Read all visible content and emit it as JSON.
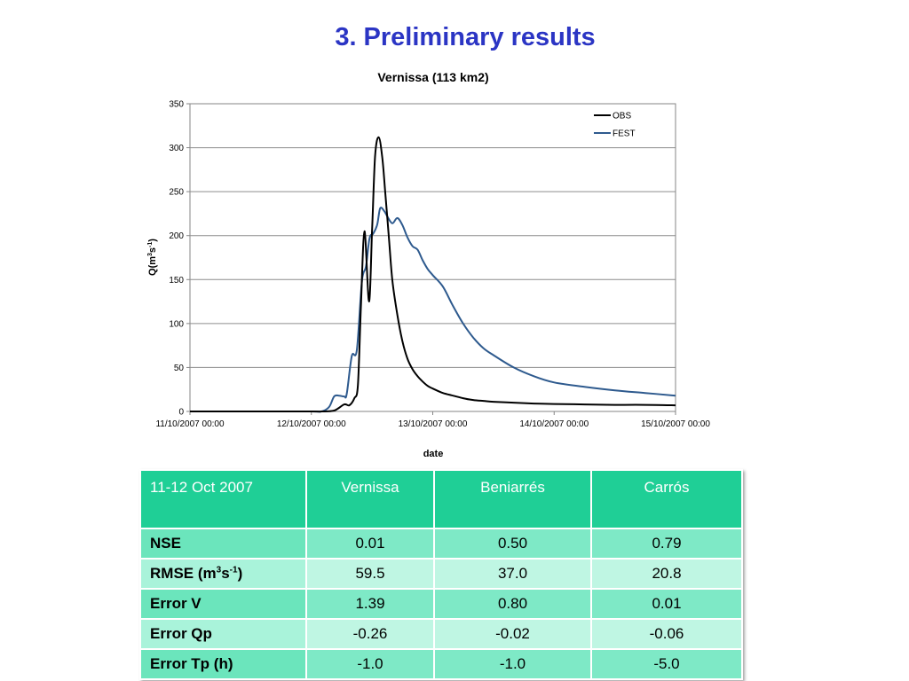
{
  "slide": {
    "title": "3. Preliminary results"
  },
  "chart_data": {
    "type": "line",
    "title": "Vernissa (113 km2)",
    "xlabel": "date",
    "ylabel": {
      "base": "Q(m",
      "sup1": "3",
      "mid": "s",
      "sup2": "-1",
      "end": ")"
    },
    "ylim": [
      0,
      350
    ],
    "xlim": [
      "11/10/2007 00:00",
      "15/10/2007 00:00"
    ],
    "x_unit": "hours since 11/10/2007 00:00",
    "yticks": [
      "0",
      "50",
      "100",
      "150",
      "200",
      "250",
      "300",
      "350"
    ],
    "xticks": [
      "11/10/2007 00:00",
      "12/10/2007 00:00",
      "13/10/2007 00:00",
      "14/10/2007 00:00",
      "15/10/2007 00:00"
    ],
    "grid": true,
    "legend_position": "top-right",
    "series": [
      {
        "name": "OBS",
        "color": "#000000",
        "x": [
          0,
          12,
          24,
          26,
          28.5,
          30.5,
          31.5,
          32.5,
          33.2,
          33.8,
          34.5,
          35.4,
          36,
          36.6,
          37.3,
          38,
          38.6,
          39.3,
          40,
          41,
          42,
          43,
          44,
          45,
          46,
          47,
          48,
          50,
          52,
          54,
          56,
          58,
          60,
          64,
          68,
          72,
          78,
          84,
          90,
          96
        ],
        "values": [
          0,
          0,
          0,
          0,
          1,
          8,
          7,
          15,
          30,
          120,
          205,
          125,
          205,
          290,
          312,
          290,
          250,
          200,
          150,
          110,
          80,
          60,
          48,
          40,
          34,
          29,
          26,
          21,
          18,
          15,
          13,
          12,
          11,
          10,
          9,
          8.5,
          8,
          7.5,
          7.5,
          7
        ]
      },
      {
        "name": "FEST",
        "color": "#2e5a8e",
        "x": [
          0,
          12,
          24,
          26,
          27.5,
          28.5,
          29.5,
          30.5,
          31,
          32,
          33,
          34,
          34.8,
          35.5,
          36.2,
          37,
          37.6,
          38.4,
          39,
          40,
          41,
          42,
          43,
          44,
          45,
          46,
          47,
          48,
          50,
          52,
          54,
          56,
          58,
          60,
          64,
          68,
          72,
          78,
          84,
          90,
          96
        ],
        "values": [
          0,
          0,
          0,
          0,
          5,
          17,
          18,
          17,
          20,
          63,
          70,
          148,
          165,
          197,
          202,
          212,
          231,
          228,
          222,
          214,
          220,
          212,
          198,
          188,
          184,
          172,
          162,
          155,
          142,
          120,
          100,
          84,
          72,
          64,
          50,
          40,
          33,
          28,
          24,
          21,
          18
        ]
      }
    ]
  },
  "table": {
    "headers": [
      "11-12 Oct 2007",
      "Vernissa",
      "Beniarrés",
      "Carrós"
    ],
    "rows": [
      {
        "label": "NSE",
        "values": [
          "0.01",
          "0.50",
          "0.79"
        ]
      },
      {
        "label": "RMSE (m",
        "label_sup1": "3",
        "label_mid": "s",
        "label_sup2": "-1",
        "label_end": ")",
        "values": [
          "59.5",
          "37.0",
          "20.8"
        ]
      },
      {
        "label": "Error V",
        "values": [
          "1.39",
          "0.80",
          "0.01"
        ]
      },
      {
        "label": "Error Qp",
        "values": [
          "-0.26",
          "-0.02",
          "-0.06"
        ]
      },
      {
        "label": "Error Tp (h)",
        "values": [
          "-1.0",
          "-1.0",
          "-5.0"
        ]
      }
    ]
  }
}
